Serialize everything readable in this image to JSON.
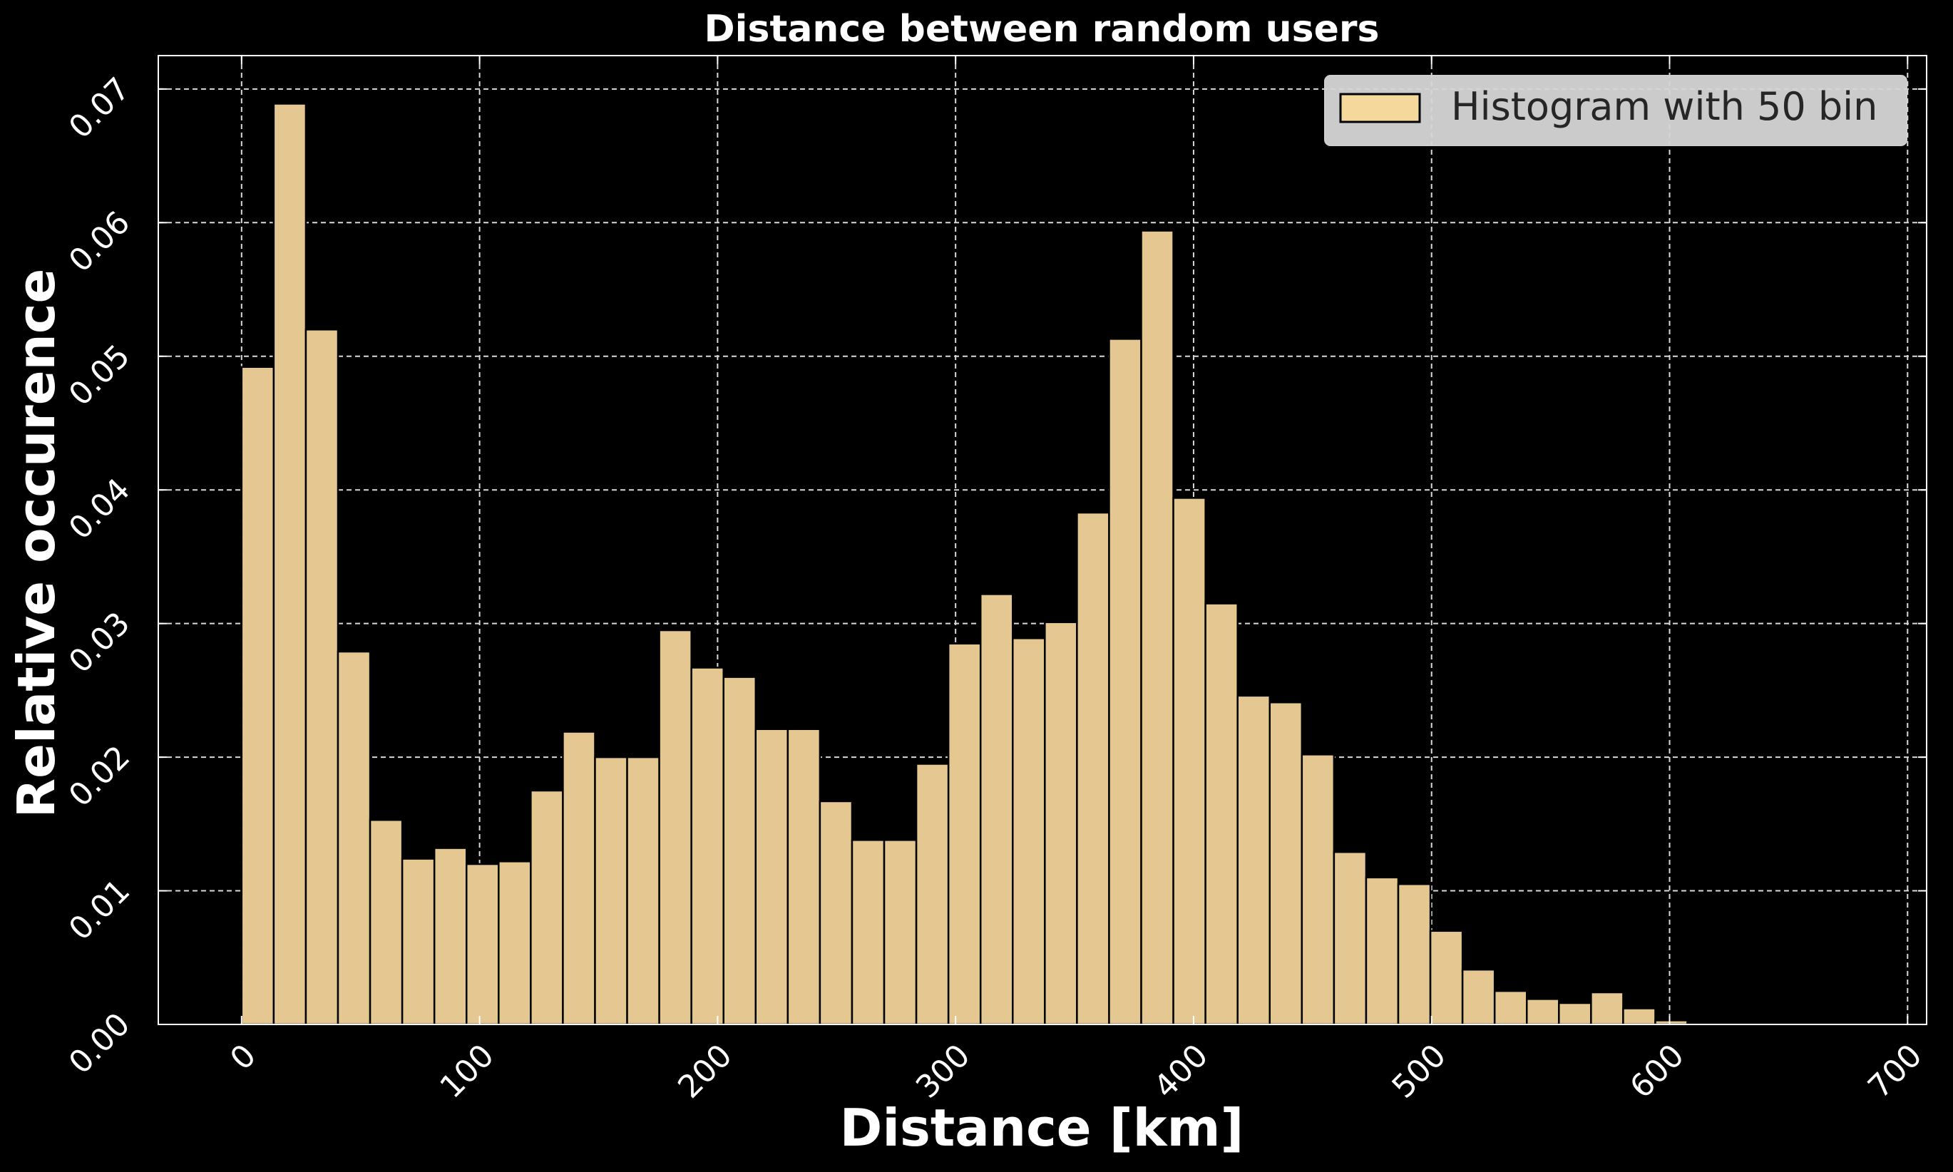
{
  "chart_data": {
    "type": "bar",
    "title": "Distance between random users",
    "xlabel": "Distance [km]",
    "ylabel": "Relative occurence",
    "xlim": [
      -35,
      708
    ],
    "ylim": [
      0,
      0.0725
    ],
    "xticks": [
      0,
      100,
      200,
      300,
      400,
      500,
      600,
      700
    ],
    "yticks": [
      0.0,
      0.01,
      0.02,
      0.03,
      0.04,
      0.05,
      0.06,
      0.07
    ],
    "xtick_labels": [
      "0",
      "100",
      "200",
      "300",
      "400",
      "500",
      "600",
      "700"
    ],
    "ytick_labels": [
      "0.00",
      "0.01",
      "0.02",
      "0.03",
      "0.04",
      "0.05",
      "0.06",
      "0.07"
    ],
    "grid": true,
    "legend_position": "top-right",
    "bar_color": "#e5c891",
    "legend_swatch_color": "#f5d99c",
    "series": [
      {
        "name": "Histogram with 50 bin",
        "bin_start": 0,
        "bin_width": 13.5,
        "values": [
          0.0492,
          0.0689,
          0.052,
          0.0279,
          0.0153,
          0.0124,
          0.0132,
          0.012,
          0.0122,
          0.0175,
          0.0219,
          0.02,
          0.02,
          0.0295,
          0.0267,
          0.026,
          0.0221,
          0.0221,
          0.0167,
          0.0138,
          0.0138,
          0.0195,
          0.0285,
          0.0322,
          0.0289,
          0.0301,
          0.0383,
          0.0513,
          0.0594,
          0.0394,
          0.0315,
          0.0246,
          0.0241,
          0.0202,
          0.0129,
          0.011,
          0.0105,
          0.007,
          0.0041,
          0.0025,
          0.0019,
          0.0016,
          0.0024,
          0.0012,
          0.0003,
          0.0001,
          0,
          0,
          0,
          0
        ]
      }
    ]
  }
}
